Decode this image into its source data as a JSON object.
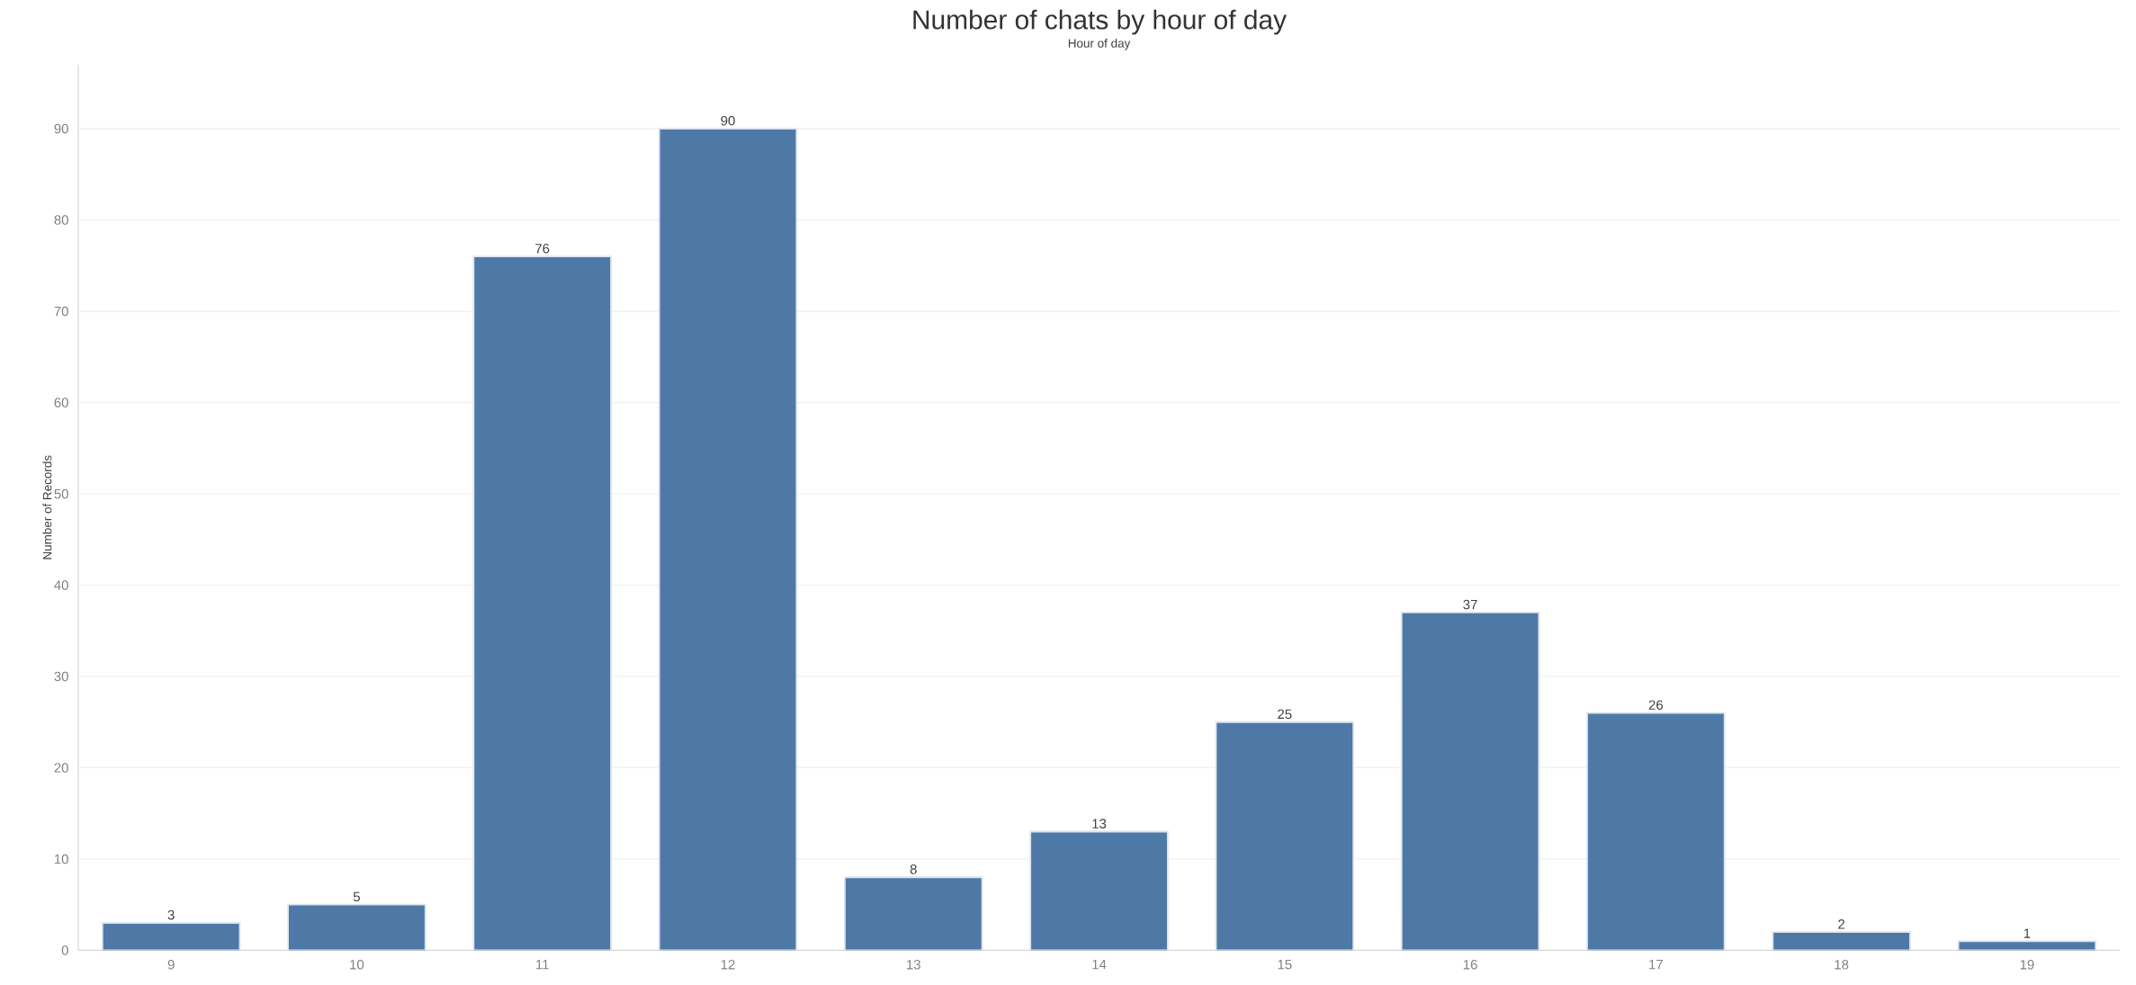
{
  "chart_data": {
    "type": "bar",
    "title": "Number of chats by hour of day",
    "xlabel": "Hour of day",
    "ylabel": "Number of Records",
    "categories": [
      "9",
      "10",
      "11",
      "12",
      "13",
      "14",
      "15",
      "16",
      "17",
      "18",
      "19"
    ],
    "values": [
      3,
      5,
      76,
      90,
      8,
      13,
      25,
      37,
      26,
      2,
      1
    ],
    "color": "#4e79a7",
    "ylim": [
      0,
      97
    ],
    "yticks": [
      0,
      10,
      20,
      30,
      40,
      50,
      60,
      70,
      80,
      90
    ],
    "grid": "y",
    "data_labels": true
  }
}
